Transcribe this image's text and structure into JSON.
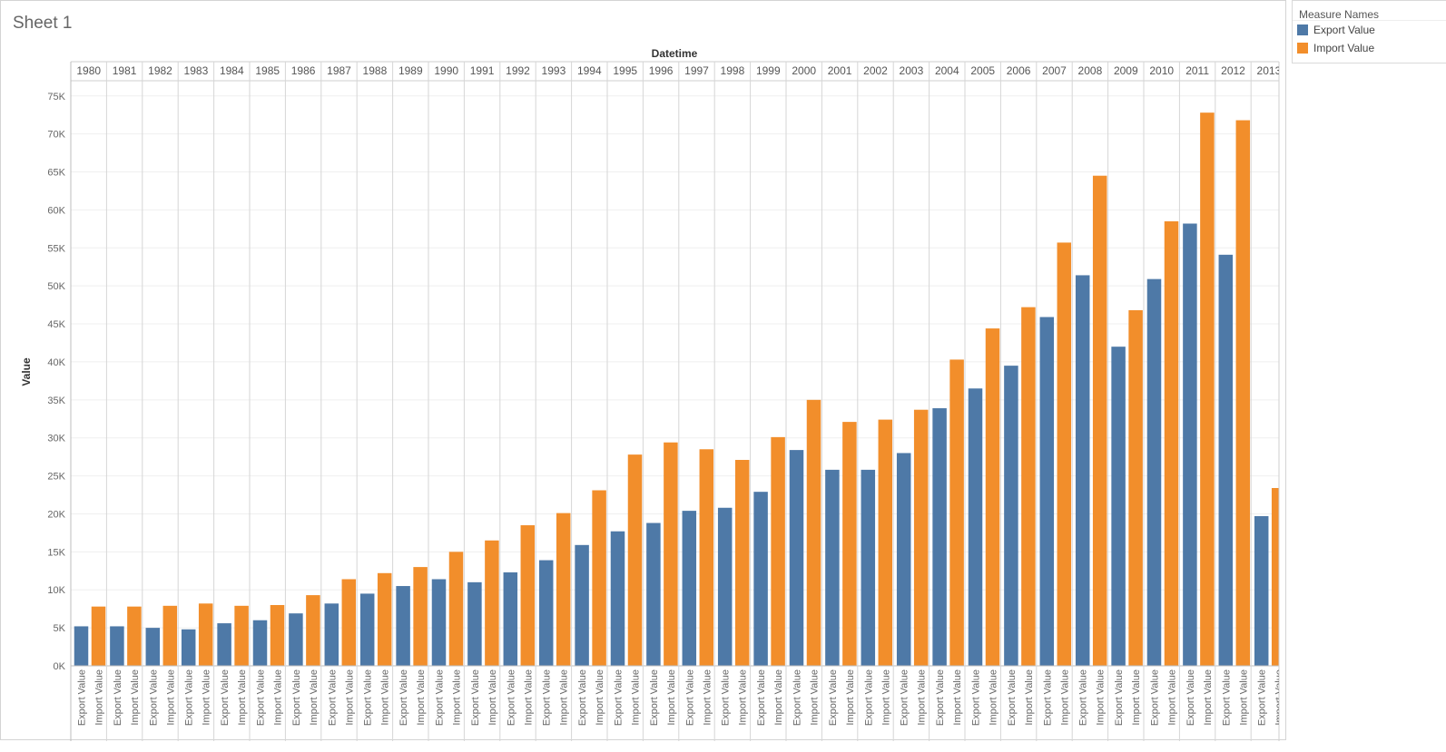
{
  "sheet": {
    "title": "Sheet 1"
  },
  "legend": {
    "title": "Measure Names",
    "items": [
      {
        "label": "Export Value",
        "color": "#4e79a7"
      },
      {
        "label": "Import Value",
        "color": "#f28e2b"
      }
    ]
  },
  "chart_data": {
    "type": "bar",
    "title": "",
    "column_header": "Datetime",
    "ylabel": "Value",
    "ylim": [
      0,
      77000
    ],
    "yticks": [
      0,
      5000,
      10000,
      15000,
      20000,
      25000,
      30000,
      35000,
      40000,
      45000,
      50000,
      55000,
      60000,
      65000,
      70000,
      75000
    ],
    "ytick_labels": [
      "0K",
      "5K",
      "10K",
      "15K",
      "20K",
      "25K",
      "30K",
      "35K",
      "40K",
      "45K",
      "50K",
      "55K",
      "60K",
      "65K",
      "70K",
      "75K"
    ],
    "grid": true,
    "legend_position": "top-right",
    "categories": [
      "1980",
      "1981",
      "1982",
      "1983",
      "1984",
      "1985",
      "1986",
      "1987",
      "1988",
      "1989",
      "1990",
      "1991",
      "1992",
      "1993",
      "1994",
      "1995",
      "1996",
      "1997",
      "1998",
      "1999",
      "2000",
      "2001",
      "2002",
      "2003",
      "2004",
      "2005",
      "2006",
      "2007",
      "2008",
      "2009",
      "2010",
      "2011",
      "2012",
      "2013"
    ],
    "series": [
      {
        "name": "Export Value",
        "color": "#4e79a7",
        "values": [
          5200,
          5200,
          5000,
          4800,
          5600,
          6000,
          6900,
          8200,
          9500,
          10500,
          11400,
          11000,
          12300,
          13900,
          15900,
          17700,
          18800,
          20400,
          20800,
          22900,
          28400,
          25800,
          25800,
          28000,
          33900,
          36500,
          39500,
          45900,
          51400,
          42000,
          50900,
          58200,
          54100,
          19700
        ]
      },
      {
        "name": "Import Value",
        "color": "#f28e2b",
        "values": [
          7800,
          7800,
          7900,
          8200,
          7900,
          8000,
          9300,
          11400,
          12200,
          13000,
          15000,
          16500,
          18500,
          20100,
          23100,
          27800,
          29400,
          28500,
          27100,
          30100,
          35000,
          32100,
          32400,
          33700,
          40300,
          44400,
          47200,
          55700,
          64500,
          46800,
          58500,
          72800,
          71800,
          23400
        ]
      }
    ]
  }
}
